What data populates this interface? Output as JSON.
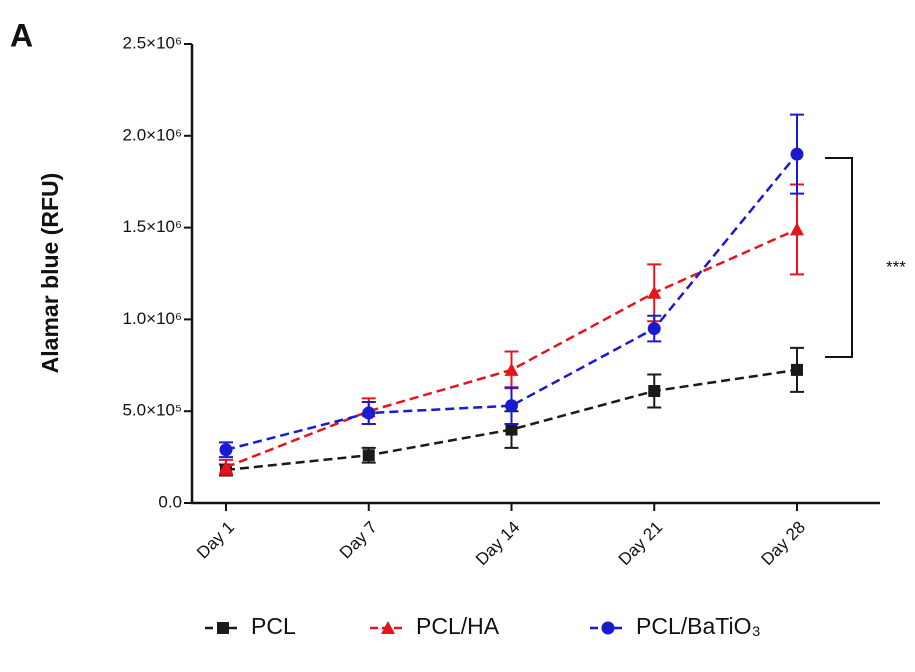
{
  "chart_data": {
    "type": "line",
    "panel_label": "A",
    "ylabel": "Alamar blue (RFU)",
    "categories": [
      "Day 1",
      "Day 7",
      "Day 14",
      "Day 21",
      "Day 28"
    ],
    "series": [
      {
        "name": "PCL",
        "color": "#1a1a1a",
        "marker": "square",
        "values": [
          180000,
          260000,
          400000,
          610000,
          725000
        ],
        "errors": [
          30000,
          40000,
          100000,
          90000,
          120000
        ]
      },
      {
        "name": "PCL/HA",
        "color": "#e8141c",
        "marker": "triangle",
        "values": [
          195000,
          500000,
          725000,
          1145000,
          1490000
        ],
        "errors": [
          40000,
          70000,
          100000,
          155000,
          245000
        ]
      },
      {
        "name": "PCL/BaTiO₃",
        "color": "#1a1ad0",
        "marker": "circle",
        "values": [
          290000,
          490000,
          530000,
          950000,
          1900000
        ],
        "errors": [
          40000,
          60000,
          100000,
          70000,
          215000
        ]
      }
    ],
    "ylim": [
      0,
      2500000
    ],
    "yticks": [
      {
        "value": 0,
        "label": "0.0"
      },
      {
        "value": 500000,
        "label": "5.0×10⁵"
      },
      {
        "value": 1000000,
        "label": "1.0×10⁶"
      },
      {
        "value": 1500000,
        "label": "1.5×10⁶"
      },
      {
        "value": 2000000,
        "label": "2.0×10⁶"
      },
      {
        "value": 2500000,
        "label": "2.5×10⁶"
      }
    ],
    "annotation": "***",
    "grid": false,
    "legend": "bottom"
  }
}
